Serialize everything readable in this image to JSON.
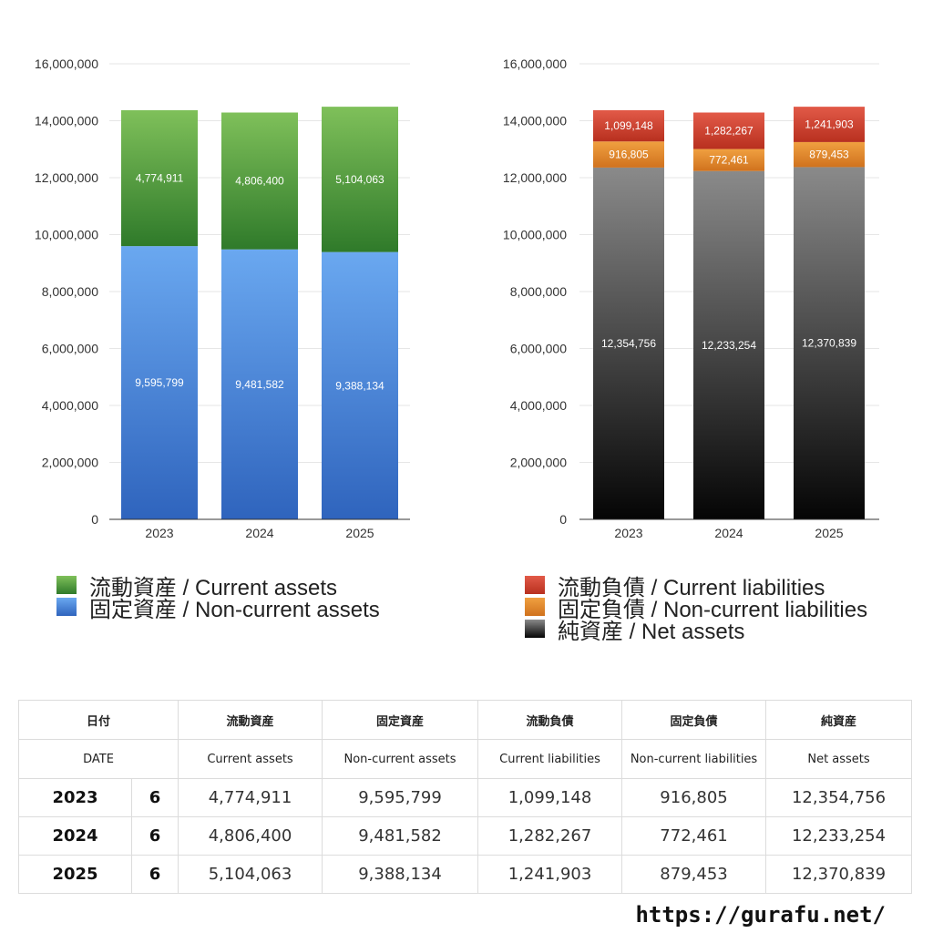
{
  "chart_data": [
    {
      "type": "bar",
      "stacked": true,
      "categories": [
        "2023",
        "2024",
        "2025"
      ],
      "ylim": [
        0,
        16000000
      ],
      "yticks": [
        0,
        2000000,
        4000000,
        6000000,
        8000000,
        10000000,
        12000000,
        14000000,
        16000000
      ],
      "ytick_labels": [
        "0",
        "2,000,000",
        "4,000,000",
        "6,000,000",
        "8,000,000",
        "10,000,000",
        "12,000,000",
        "14,000,000",
        "16,000,000"
      ],
      "grid": true,
      "legend_position": "bottom",
      "series": [
        {
          "name": "固定資産 / Non-current assets",
          "values": [
            9595799,
            9481582,
            9388134
          ],
          "labels": [
            "9,595,799",
            "9,481,582",
            "9,388,134"
          ],
          "color_top": "#6aa8f0",
          "color_bottom": "#2f64bd"
        },
        {
          "name": "流動資産 / Current assets",
          "values": [
            4774911,
            4806400,
            5104063
          ],
          "labels": [
            "4,774,911",
            "4,806,400",
            "5,104,063"
          ],
          "color_top": "#7fc05a",
          "color_bottom": "#2f7a2a"
        }
      ]
    },
    {
      "type": "bar",
      "stacked": true,
      "categories": [
        "2023",
        "2024",
        "2025"
      ],
      "ylim": [
        0,
        16000000
      ],
      "yticks": [
        0,
        2000000,
        4000000,
        6000000,
        8000000,
        10000000,
        12000000,
        14000000,
        16000000
      ],
      "ytick_labels": [
        "0",
        "2,000,000",
        "4,000,000",
        "6,000,000",
        "8,000,000",
        "10,000,000",
        "12,000,000",
        "14,000,000",
        "16,000,000"
      ],
      "grid": true,
      "legend_position": "bottom",
      "series": [
        {
          "name": "純資産 / Net assets",
          "values": [
            12354756,
            12233254,
            12370839
          ],
          "labels": [
            "12,354,756",
            "12,233,254",
            "12,370,839"
          ],
          "color_top": "#8a8a8a",
          "color_bottom": "#050505"
        },
        {
          "name": "固定負債 / Non-current liabilities",
          "values": [
            916805,
            772461,
            879453
          ],
          "labels": [
            "916,805",
            "772,461",
            "879,453"
          ],
          "color_top": "#f0a040",
          "color_bottom": "#d0721e"
        },
        {
          "name": "流動負債 / Current liabilities",
          "values": [
            1099148,
            1282267,
            1241903
          ],
          "labels": [
            "1,099,148",
            "1,282,267",
            "1,241,903"
          ],
          "color_top": "#e25a48",
          "color_bottom": "#b8301f"
        }
      ]
    }
  ],
  "legend_left": [
    {
      "label": "流動資産 / Current assets",
      "color": "#4ea83a"
    },
    {
      "label": "固定資産 / Non-current assets",
      "color": "#4a8be0"
    }
  ],
  "legend_right": [
    {
      "label": "流動負債 / Current liabilities",
      "color": "#d8443a"
    },
    {
      "label": "固定負債 / Non-current liabilities",
      "color": "#e8882e"
    },
    {
      "label": "純資産 / Net assets",
      "color": "#333333"
    }
  ],
  "table": {
    "header_jp": {
      "date": "日付",
      "current_assets": "流動資産",
      "noncurrent_assets": "固定資産",
      "current_liabilities": "流動負債",
      "noncurrent_liabilities": "固定負債",
      "net_assets": "純資産"
    },
    "header_en": {
      "date": "DATE",
      "current_assets": "Current assets",
      "noncurrent_assets": "Non-current assets",
      "current_liabilities": "Current liabilities",
      "noncurrent_liabilities": "Non-current liabilities",
      "net_assets": "Net assets"
    },
    "rows": [
      {
        "year": "2023",
        "month": "6",
        "current_assets": "4,774,911",
        "noncurrent_assets": "9,595,799",
        "current_liabilities": "1,099,148",
        "noncurrent_liabilities": "916,805",
        "net_assets": "12,354,756"
      },
      {
        "year": "2024",
        "month": "6",
        "current_assets": "4,806,400",
        "noncurrent_assets": "9,481,582",
        "current_liabilities": "1,282,267",
        "noncurrent_liabilities": "772,461",
        "net_assets": "12,233,254"
      },
      {
        "year": "2025",
        "month": "6",
        "current_assets": "5,104,063",
        "noncurrent_assets": "9,388,134",
        "current_liabilities": "1,241,903",
        "noncurrent_liabilities": "879,453",
        "net_assets": "12,370,839"
      }
    ]
  },
  "site_url": "https://gurafu.net/"
}
